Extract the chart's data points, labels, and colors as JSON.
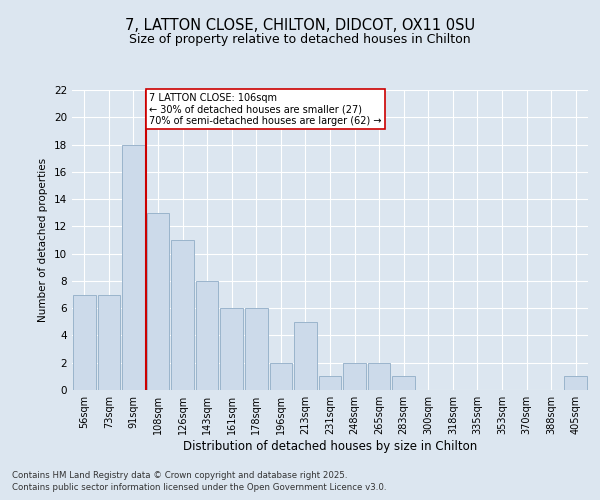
{
  "title_line1": "7, LATTON CLOSE, CHILTON, DIDCOT, OX11 0SU",
  "title_line2": "Size of property relative to detached houses in Chilton",
  "xlabel": "Distribution of detached houses by size in Chilton",
  "ylabel": "Number of detached properties",
  "categories": [
    "56sqm",
    "73sqm",
    "91sqm",
    "108sqm",
    "126sqm",
    "143sqm",
    "161sqm",
    "178sqm",
    "196sqm",
    "213sqm",
    "231sqm",
    "248sqm",
    "265sqm",
    "283sqm",
    "300sqm",
    "318sqm",
    "335sqm",
    "353sqm",
    "370sqm",
    "388sqm",
    "405sqm"
  ],
  "values": [
    7,
    7,
    18,
    13,
    11,
    8,
    6,
    6,
    2,
    5,
    1,
    2,
    2,
    1,
    0,
    0,
    0,
    0,
    0,
    0,
    1
  ],
  "bar_color": "#ccdaea",
  "bar_edgecolor": "#9ab4cc",
  "bar_linewidth": 0.7,
  "vline_x_index": 2,
  "vline_color": "#cc0000",
  "annotation_text": "7 LATTON CLOSE: 106sqm\n← 30% of detached houses are smaller (27)\n70% of semi-detached houses are larger (62) →",
  "annotation_box_edgecolor": "#cc0000",
  "annotation_box_facecolor": "#ffffff",
  "ylim": [
    0,
    22
  ],
  "yticks": [
    0,
    2,
    4,
    6,
    8,
    10,
    12,
    14,
    16,
    18,
    20,
    22
  ],
  "background_color": "#dce6f0",
  "grid_color": "#ffffff",
  "footer_line1": "Contains HM Land Registry data © Crown copyright and database right 2025.",
  "footer_line2": "Contains public sector information licensed under the Open Government Licence v3.0."
}
